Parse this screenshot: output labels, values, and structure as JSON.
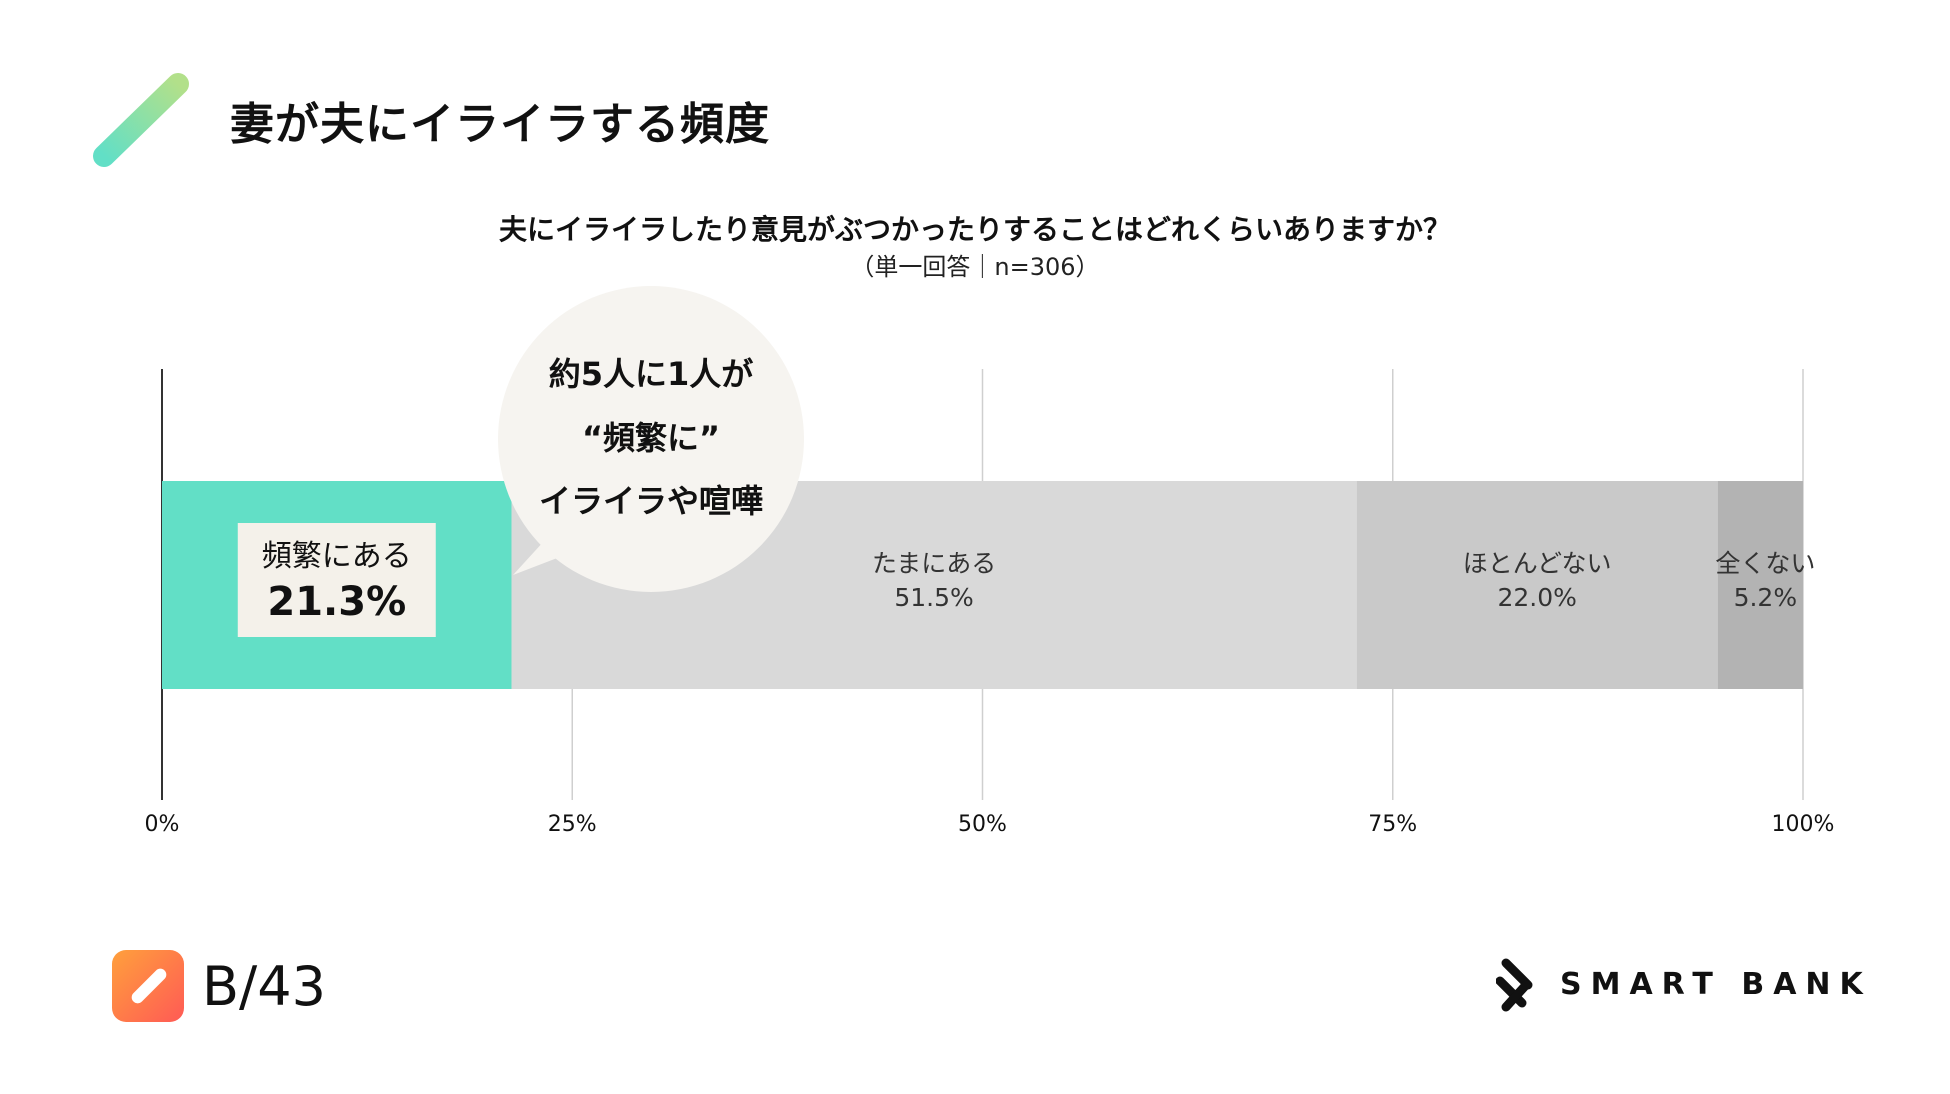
{
  "header": {
    "title": "妻が夫にイライラする頻度"
  },
  "question": {
    "text": "夫にイライラしたり意見がぶつかったりすることはどれくらいありますか？",
    "note": "（単一回答｜n=306）"
  },
  "callout": {
    "line1": "約5人に1人が",
    "line2": "“頻繁に”",
    "line3": "イライラや喧嘩"
  },
  "colors": {
    "accent": "#62dfc6",
    "bar_light": "#d9d9d9",
    "bar_mid": "#c9c9c9",
    "bar_dark": "#b3b3b3",
    "label_box": "#f4f1ea",
    "callout_bg": "#f6f4f0"
  },
  "chart_data": {
    "type": "bar",
    "orientation": "horizontal-stacked-100",
    "title": "夫にイライラしたり意見がぶつかったりすることはどれくらいありますか？",
    "xlim": [
      0,
      100
    ],
    "x_ticks": [
      "0%",
      "25%",
      "50%",
      "75%",
      "100%"
    ],
    "x_tick_values": [
      0,
      25,
      50,
      75,
      100
    ],
    "grid": true,
    "series": [
      {
        "name": "頻繁にある",
        "value": 21.3,
        "label": "21.3%",
        "color": "#62dfc6"
      },
      {
        "name": "たまにある",
        "value": 51.5,
        "label": "51.5%",
        "color": "#d9d9d9"
      },
      {
        "name": "ほとんどない",
        "value": 22.0,
        "label": "22.0%",
        "color": "#c9c9c9"
      },
      {
        "name": "全くない",
        "value": 5.2,
        "label": "5.2%",
        "color": "#b3b3b3"
      }
    ]
  },
  "footer": {
    "brand": "B/43",
    "company": "SMART BANK",
    "app_icon": "b43-app-icon",
    "company_icon": "smartbank-logo-icon"
  }
}
